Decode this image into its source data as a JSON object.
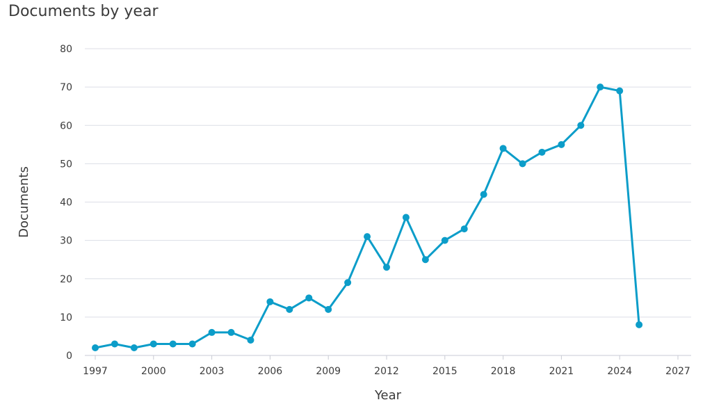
{
  "chart_data": {
    "type": "line",
    "title": "Documents by year",
    "xlabel": "Year",
    "ylabel": "Documents",
    "xlim": [
      1997,
      2027
    ],
    "ylim": [
      0,
      80
    ],
    "x_ticks": [
      "1997",
      "2000",
      "2003",
      "2006",
      "2009",
      "2012",
      "2015",
      "2018",
      "2021",
      "2024",
      "2027"
    ],
    "y_ticks": [
      "0",
      "10",
      "20",
      "30",
      "40",
      "50",
      "60",
      "70",
      "80"
    ],
    "grid": true,
    "series": [
      {
        "color": "#0c9dc9",
        "x": [
          1997,
          1998,
          1999,
          2000,
          2001,
          2002,
          2003,
          2004,
          2005,
          2006,
          2007,
          2008,
          2009,
          2010,
          2011,
          2012,
          2013,
          2014,
          2015,
          2016,
          2017,
          2018,
          2019,
          2020,
          2021,
          2022,
          2023,
          2024,
          2025
        ],
        "values": [
          2,
          3,
          2,
          3,
          3,
          3,
          6,
          6,
          4,
          14,
          12,
          15,
          12,
          19,
          31,
          23,
          36,
          25,
          30,
          33,
          42,
          54,
          50,
          53,
          55,
          60,
          70,
          69,
          8
        ]
      }
    ]
  }
}
